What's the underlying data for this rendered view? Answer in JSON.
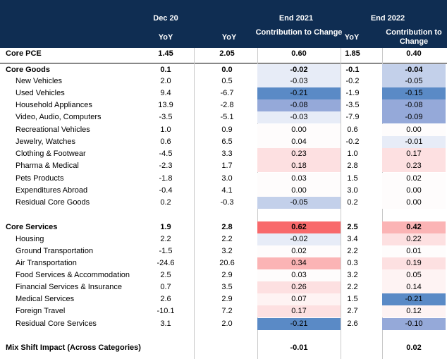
{
  "header": {
    "group1": "Dec 20",
    "group2": "End 2021",
    "group3": "End 2022",
    "yoy1": "YoY",
    "yoy2": "YoY",
    "contrib2": "Contribution to Change",
    "yoy3": "YoY",
    "contrib3": "Contribution to Change"
  },
  "heat_colors": {
    "strong_red": "#f8696b",
    "mid_red": "#fbb4b5",
    "light_red": "#fde0e1",
    "faint_red": "#fef3f3",
    "neutral": "#fefcfc",
    "faint_blue": "#e7ecf7",
    "light_blue": "#c3d0ea",
    "mid_blue": "#95a9d9",
    "strong_blue": "#5a8ac6"
  },
  "rows": [
    {
      "label": "Core PCE",
      "dec20": "1.45",
      "y21": "2.05",
      "c21": "0.60",
      "y22": "1.85",
      "c22": "0.40",
      "bold": true
    },
    {
      "label": "Core Goods",
      "dec20": "0.1",
      "y21": "0.0",
      "c21": "-0.02",
      "y22": "-0.1",
      "c22": "-0.04",
      "bold": true
    },
    {
      "label": "New Vehicles",
      "dec20": "2.0",
      "y21": "0.5",
      "c21": "-0.03",
      "y22": "-0.2",
      "c22": "-0.05"
    },
    {
      "label": "Used Vehicles",
      "dec20": "9.4",
      "y21": "-6.7",
      "c21": "-0.21",
      "y22": "-1.9",
      "c22": "-0.15"
    },
    {
      "label": "Household Appliances",
      "dec20": "13.9",
      "y21": "-2.8",
      "c21": "-0.08",
      "y22": "-3.5",
      "c22": "-0.08"
    },
    {
      "label": "Video, Audio, Computers",
      "dec20": "-3.5",
      "y21": "-5.1",
      "c21": "-0.03",
      "y22": "-7.9",
      "c22": "-0.09"
    },
    {
      "label": "Recreational Vehicles",
      "dec20": "1.0",
      "y21": "0.9",
      "c21": "0.00",
      "y22": "0.6",
      "c22": "0.00"
    },
    {
      "label": "Jewelry, Watches",
      "dec20": "0.6",
      "y21": "6.5",
      "c21": "0.04",
      "y22": "-0.2",
      "c22": "-0.01"
    },
    {
      "label": "Clothing & Footwear",
      "dec20": "-4.5",
      "y21": "3.3",
      "c21": "0.23",
      "y22": "1.0",
      "c22": "0.17"
    },
    {
      "label": "Pharma & Medical",
      "dec20": "-2.3",
      "y21": "1.7",
      "c21": "0.18",
      "y22": "2.8",
      "c22": "0.23"
    },
    {
      "label": "Pets Products",
      "dec20": "-1.8",
      "y21": "3.0",
      "c21": "0.03",
      "y22": "1.5",
      "c22": "0.02"
    },
    {
      "label": "Expenditures Abroad",
      "dec20": "-0.4",
      "y21": "4.1",
      "c21": "0.00",
      "y22": "3.0",
      "c22": "0.00"
    },
    {
      "label": "Residual Core Goods",
      "dec20": "0.2",
      "y21": "-0.3",
      "c21": "-0.05",
      "y22": "0.2",
      "c22": "0.00"
    },
    {
      "label": "Core Services",
      "dec20": "1.9",
      "y21": "2.8",
      "c21": "0.62",
      "y22": "2.5",
      "c22": "0.42",
      "bold": true
    },
    {
      "label": "Housing",
      "dec20": "2.2",
      "y21": "2.2",
      "c21": "-0.02",
      "y22": "3.4",
      "c22": "0.22"
    },
    {
      "label": "Ground Transportation",
      "dec20": "-1.5",
      "y21": "3.2",
      "c21": "0.02",
      "y22": "2.2",
      "c22": "0.01"
    },
    {
      "label": "Air Transportation",
      "dec20": "-24.6",
      "y21": "20.6",
      "c21": "0.34",
      "y22": "0.3",
      "c22": "0.19"
    },
    {
      "label": "Food Services & Accommodation",
      "dec20": "2.5",
      "y21": "2.9",
      "c21": "0.03",
      "y22": "3.2",
      "c22": "0.05"
    },
    {
      "label": "Financial Services & Insurance",
      "dec20": "0.7",
      "y21": "3.5",
      "c21": "0.26",
      "y22": "2.2",
      "c22": "0.14"
    },
    {
      "label": "Medical Services",
      "dec20": "2.6",
      "y21": "2.9",
      "c21": "0.07",
      "y22": "1.5",
      "c22": "-0.21"
    },
    {
      "label": "Foreign Travel",
      "dec20": "-10.1",
      "y21": "7.2",
      "c21": "0.17",
      "y22": "2.7",
      "c22": "0.12"
    },
    {
      "label": "Residual Core Services",
      "dec20": "3.1",
      "y21": "2.0",
      "c21": "-0.21",
      "y22": "2.6",
      "c22": "-0.10"
    },
    {
      "label": "Mix Shift Impact (Across Categories)",
      "dec20": "",
      "y21": "",
      "c21": "-0.01",
      "y22": "",
      "c22": "0.02",
      "bold": true
    }
  ]
}
